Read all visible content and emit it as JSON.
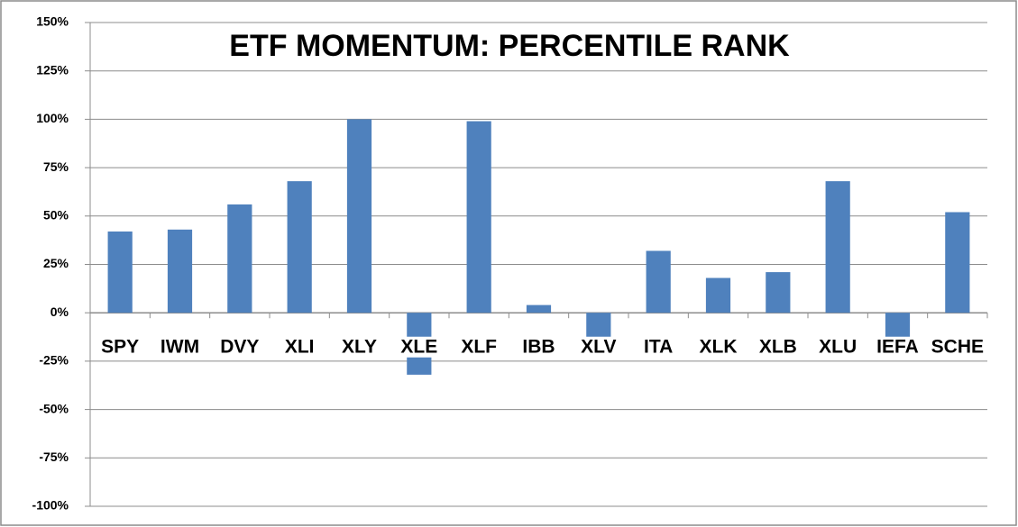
{
  "chart_data": {
    "type": "bar",
    "title": "ETF MOMENTUM: PERCENTILE RANK",
    "categories": [
      "SPY",
      "IWM",
      "DVY",
      "XLI",
      "XLY",
      "XLE",
      "XLF",
      "IBB",
      "XLV",
      "ITA",
      "XLK",
      "XLB",
      "XLU",
      "IEFA",
      "SCHE"
    ],
    "values": [
      42,
      43,
      56,
      68,
      100,
      -32,
      99,
      4,
      -17,
      32,
      18,
      21,
      68,
      -17,
      52
    ],
    "color": "#4f81bd",
    "ylim": [
      -100,
      150
    ],
    "yticks": [
      {
        "value": -100,
        "label": "-100%"
      },
      {
        "value": -75,
        "label": "-75%"
      },
      {
        "value": -50,
        "label": "-50%"
      },
      {
        "value": -25,
        "label": "-25%"
      },
      {
        "value": 0,
        "label": "0%"
      },
      {
        "value": 25,
        "label": "25%"
      },
      {
        "value": 50,
        "label": "50%"
      },
      {
        "value": 75,
        "label": "75%"
      },
      {
        "value": 100,
        "label": "100%"
      },
      {
        "value": 125,
        "label": "125%"
      },
      {
        "value": 150,
        "label": "150%"
      }
    ],
    "grid": true
  }
}
